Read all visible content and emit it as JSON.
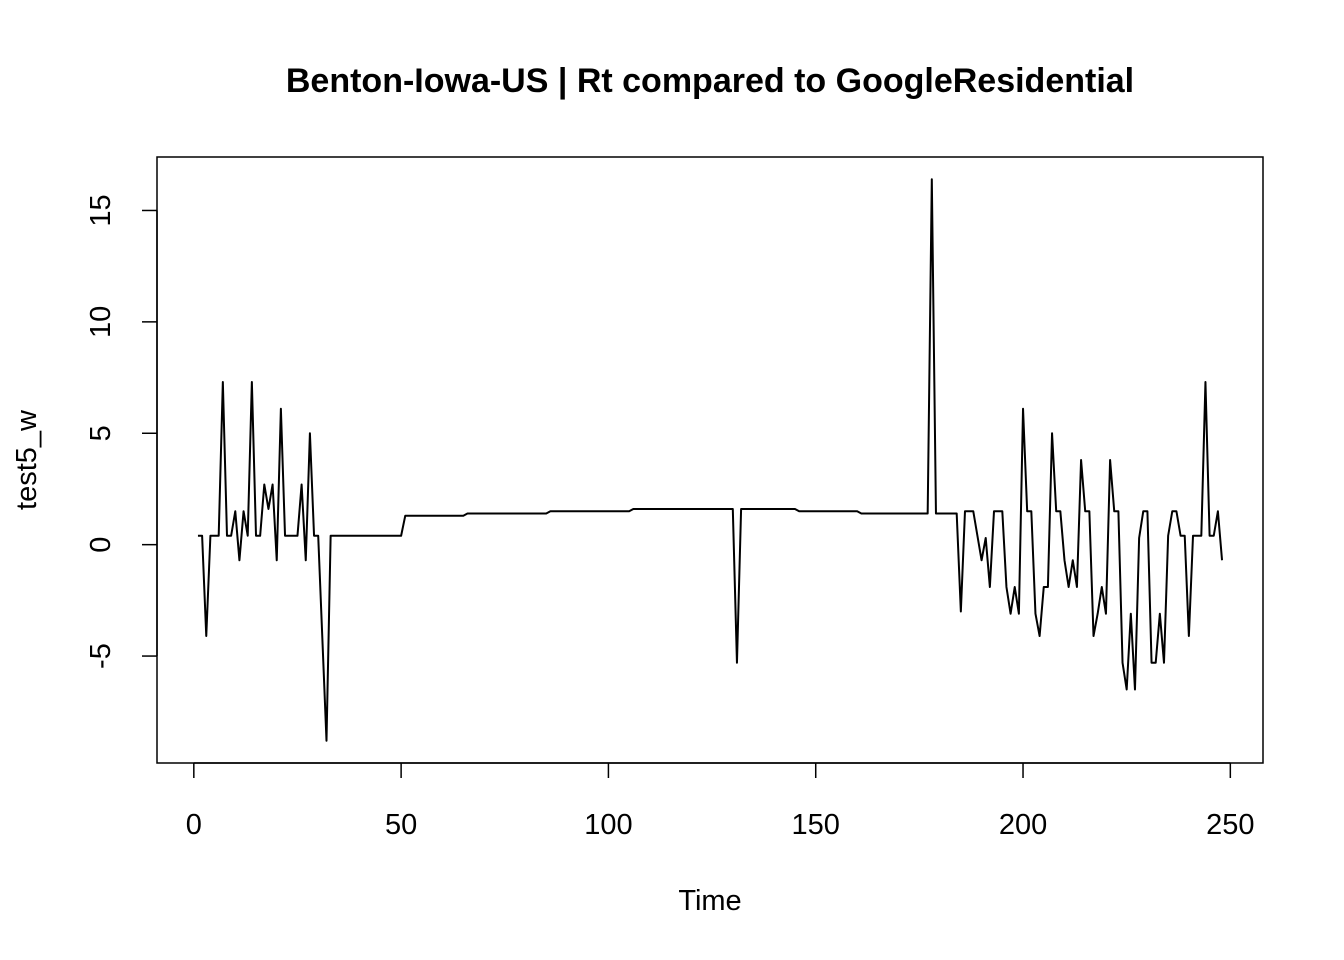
{
  "chart_data": {
    "type": "line",
    "title": "Benton-Iowa-US | Rt compared to GoogleResidential",
    "x_label": "Time",
    "y_label": "test5_w",
    "color": "#000000",
    "xlim": [
      -8.88,
      257.88
    ],
    "ylim": [
      -9.8,
      17.4
    ],
    "xticks": [
      0,
      50,
      100,
      150,
      200,
      250
    ],
    "yticks": [
      -5,
      0,
      5,
      10,
      15
    ],
    "x": [
      1,
      2,
      3,
      4,
      5,
      6,
      7,
      8,
      9,
      10,
      11,
      12,
      13,
      14,
      15,
      16,
      17,
      18,
      19,
      20,
      21,
      22,
      23,
      24,
      25,
      26,
      27,
      28,
      29,
      30,
      31,
      32,
      33,
      34,
      35,
      36,
      37,
      38,
      39,
      40,
      41,
      42,
      43,
      44,
      45,
      46,
      47,
      48,
      49,
      50,
      51,
      52,
      53,
      54,
      55,
      56,
      57,
      58,
      59,
      60,
      61,
      62,
      63,
      64,
      65,
      66,
      67,
      68,
      69,
      70,
      71,
      72,
      73,
      74,
      75,
      76,
      77,
      78,
      79,
      80,
      81,
      82,
      83,
      84,
      85,
      86,
      87,
      88,
      89,
      90,
      91,
      92,
      93,
      94,
      95,
      96,
      97,
      98,
      99,
      100,
      101,
      102,
      103,
      104,
      105,
      106,
      107,
      108,
      109,
      110,
      111,
      112,
      113,
      114,
      115,
      116,
      117,
      118,
      119,
      120,
      121,
      122,
      123,
      124,
      125,
      126,
      127,
      128,
      129,
      130,
      131,
      132,
      133,
      134,
      135,
      136,
      137,
      138,
      139,
      140,
      141,
      142,
      143,
      144,
      145,
      146,
      147,
      148,
      149,
      150,
      151,
      152,
      153,
      154,
      155,
      156,
      157,
      158,
      159,
      160,
      161,
      162,
      163,
      164,
      165,
      166,
      167,
      168,
      169,
      170,
      171,
      172,
      173,
      174,
      175,
      176,
      177,
      178,
      179,
      180,
      181,
      182,
      183,
      184,
      185,
      186,
      187,
      188,
      189,
      190,
      191,
      192,
      193,
      194,
      195,
      196,
      197,
      198,
      199,
      200,
      201,
      202,
      203,
      204,
      205,
      206,
      207,
      208,
      209,
      210,
      211,
      212,
      213,
      214,
      215,
      216,
      217,
      218,
      219,
      220,
      221,
      222,
      223,
      224,
      225,
      226,
      227,
      228,
      229,
      230,
      231,
      232,
      233,
      234,
      235,
      236,
      237,
      238,
      239,
      240,
      241,
      242,
      243,
      244,
      245,
      246,
      247,
      248
    ],
    "values": [
      0.4,
      0.4,
      -4.1,
      0.4,
      0.4,
      0.4,
      7.3,
      0.4,
      0.4,
      1.5,
      -0.7,
      1.5,
      0.4,
      7.3,
      0.4,
      0.4,
      2.7,
      1.6,
      2.7,
      -0.7,
      6.1,
      0.4,
      0.4,
      0.4,
      0.4,
      2.7,
      -0.7,
      5.0,
      0.4,
      0.4,
      -4.2,
      -8.8,
      0.4,
      0.4,
      0.4,
      0.4,
      0.4,
      0.4,
      0.4,
      0.4,
      0.4,
      0.4,
      0.4,
      0.4,
      0.4,
      0.4,
      0.4,
      0.4,
      0.4,
      0.4,
      1.3,
      1.3,
      1.3,
      1.3,
      1.3,
      1.3,
      1.3,
      1.3,
      1.3,
      1.3,
      1.3,
      1.3,
      1.3,
      1.3,
      1.3,
      1.4,
      1.4,
      1.4,
      1.4,
      1.4,
      1.4,
      1.4,
      1.4,
      1.4,
      1.4,
      1.4,
      1.4,
      1.4,
      1.4,
      1.4,
      1.4,
      1.4,
      1.4,
      1.4,
      1.4,
      1.5,
      1.5,
      1.5,
      1.5,
      1.5,
      1.5,
      1.5,
      1.5,
      1.5,
      1.5,
      1.5,
      1.5,
      1.5,
      1.5,
      1.5,
      1.5,
      1.5,
      1.5,
      1.5,
      1.5,
      1.6,
      1.6,
      1.6,
      1.6,
      1.6,
      1.6,
      1.6,
      1.6,
      1.6,
      1.6,
      1.6,
      1.6,
      1.6,
      1.6,
      1.6,
      1.6,
      1.6,
      1.6,
      1.6,
      1.6,
      1.6,
      1.6,
      1.6,
      1.6,
      1.6,
      -5.3,
      1.6,
      1.6,
      1.6,
      1.6,
      1.6,
      1.6,
      1.6,
      1.6,
      1.6,
      1.6,
      1.6,
      1.6,
      1.6,
      1.6,
      1.5,
      1.5,
      1.5,
      1.5,
      1.5,
      1.5,
      1.5,
      1.5,
      1.5,
      1.5,
      1.5,
      1.5,
      1.5,
      1.5,
      1.5,
      1.4,
      1.4,
      1.4,
      1.4,
      1.4,
      1.4,
      1.4,
      1.4,
      1.4,
      1.4,
      1.4,
      1.4,
      1.4,
      1.4,
      1.4,
      1.4,
      1.4,
      16.4,
      1.4,
      1.4,
      1.4,
      1.4,
      1.4,
      1.4,
      -3.0,
      1.5,
      1.5,
      1.5,
      0.4,
      -0.7,
      0.3,
      -1.9,
      1.5,
      1.5,
      1.5,
      -1.9,
      -3.1,
      -1.9,
      -3.1,
      6.1,
      1.5,
      1.5,
      -3.1,
      -4.1,
      -1.9,
      -1.9,
      5.0,
      1.5,
      1.5,
      -0.7,
      -1.9,
      -0.7,
      -1.9,
      3.8,
      1.5,
      1.5,
      -4.1,
      -3.1,
      -1.9,
      -3.1,
      3.8,
      1.5,
      1.5,
      -5.3,
      -6.5,
      -3.1,
      -6.5,
      0.3,
      1.5,
      1.5,
      -5.3,
      -5.3,
      -3.1,
      -5.3,
      0.4,
      1.5,
      1.5,
      0.4,
      0.4,
      -4.1,
      0.4,
      0.4,
      0.4,
      7.3,
      0.4,
      0.4,
      1.5,
      -0.7
    ]
  }
}
